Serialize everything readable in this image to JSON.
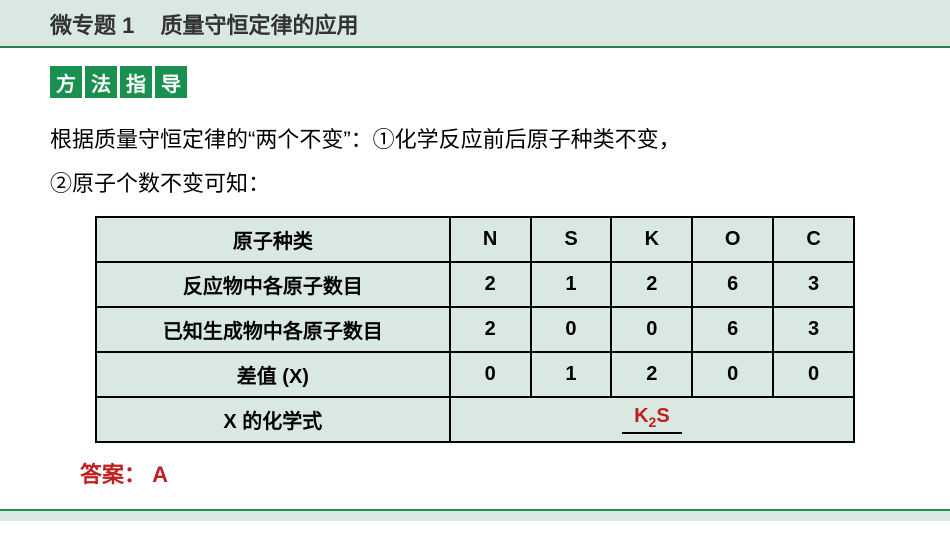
{
  "header": {
    "title_main": "微专题 1",
    "title_sub": "质量守恒定律的应用",
    "background_color": "#d9e8e0",
    "border_color": "#2a8050",
    "text_color": "#333333"
  },
  "method_badge": {
    "chars": [
      "方",
      "法",
      "指",
      "导"
    ],
    "bg_color": "#1a9050",
    "text_color": "#ffffff"
  },
  "intro": {
    "line1": "根据质量守恒定律的“两个不变”：①化学反应前后原子种类不变，",
    "line2": "②原子个数不变可知：",
    "fontsize": 22
  },
  "table": {
    "background_color": "#d9e8e0",
    "border_color": "#000000",
    "columns": [
      "N",
      "S",
      "K",
      "O",
      "C"
    ],
    "rows": [
      {
        "header": "原子种类",
        "values": [
          "N",
          "S",
          "K",
          "O",
          "C"
        ]
      },
      {
        "header": "反应物中各原子数目",
        "values": [
          "2",
          "1",
          "2",
          "6",
          "3"
        ]
      },
      {
        "header": "已知生成物中各原子数目",
        "values": [
          "2",
          "0",
          "0",
          "6",
          "3"
        ]
      },
      {
        "header": "差值 (X)",
        "values": [
          "0",
          "1",
          "2",
          "0",
          "0"
        ]
      }
    ],
    "formula_row": {
      "header": "X 的化学式",
      "formula_prefix": "K",
      "formula_sub": "2",
      "formula_suffix": "S",
      "formula_color": "#c02020"
    }
  },
  "answer": {
    "label": "答案：",
    "value": "A",
    "color": "#c02020"
  }
}
